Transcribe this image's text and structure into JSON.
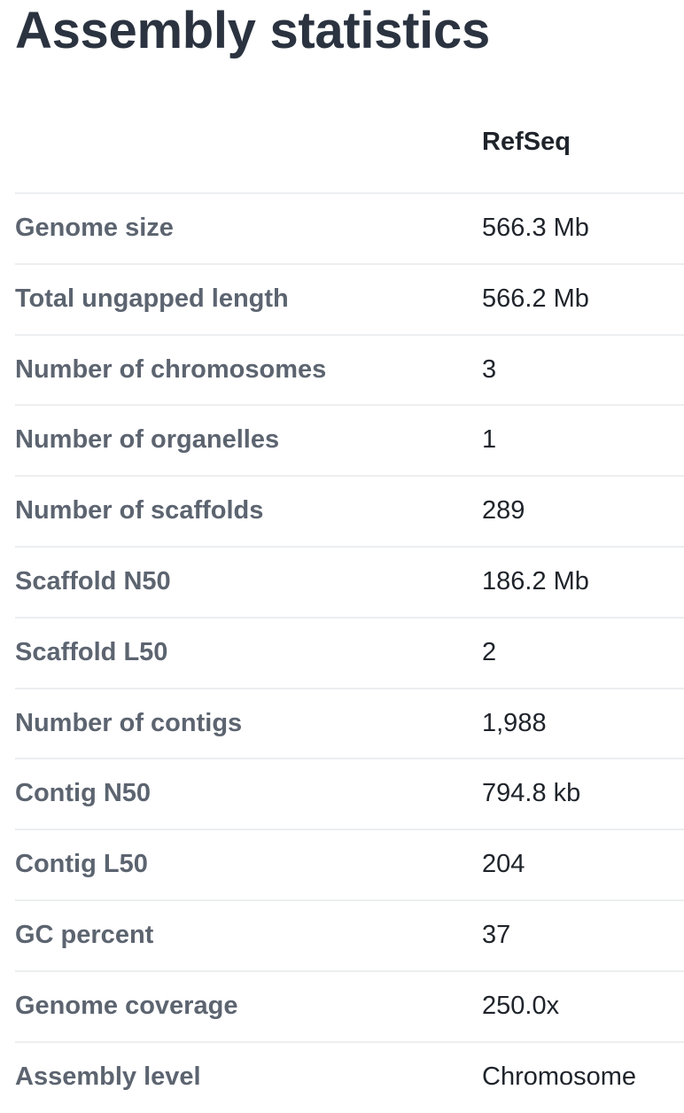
{
  "page": {
    "title": "Assembly statistics"
  },
  "table": {
    "column_header": "RefSeq",
    "rows": [
      {
        "label": "Genome size",
        "value": "566.3 Mb"
      },
      {
        "label": "Total ungapped length",
        "value": "566.2 Mb"
      },
      {
        "label": "Number of chromosomes",
        "value": "3"
      },
      {
        "label": "Number of organelles",
        "value": "1"
      },
      {
        "label": "Number of scaffolds",
        "value": "289"
      },
      {
        "label": "Scaffold N50",
        "value": "186.2 Mb"
      },
      {
        "label": "Scaffold L50",
        "value": "2"
      },
      {
        "label": "Number of contigs",
        "value": "1,988"
      },
      {
        "label": "Contig N50",
        "value": "794.8 kb"
      },
      {
        "label": "Contig L50",
        "value": "204"
      },
      {
        "label": "GC percent",
        "value": "37"
      },
      {
        "label": "Genome coverage",
        "value": "250.0x"
      },
      {
        "label": "Assembly level",
        "value": "Chromosome"
      }
    ]
  },
  "colors": {
    "title": "#2b3340",
    "label": "#5c6470",
    "value": "#1f242b",
    "divider": "#eceef0"
  }
}
